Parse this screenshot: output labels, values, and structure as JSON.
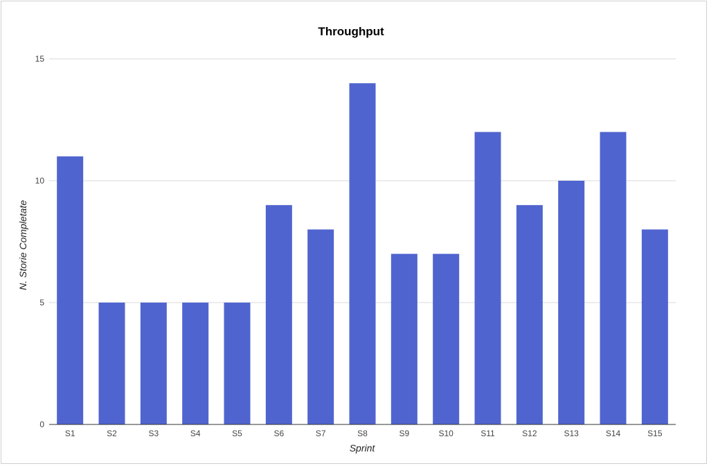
{
  "chart_data": {
    "type": "bar",
    "title": "Throughput",
    "xlabel": "Sprint",
    "ylabel": "N. Storie Completate",
    "categories": [
      "S1",
      "S2",
      "S3",
      "S4",
      "S5",
      "S6",
      "S7",
      "S8",
      "S9",
      "S10",
      "S11",
      "S12",
      "S13",
      "S14",
      "S15"
    ],
    "values": [
      11,
      5,
      5,
      5,
      5,
      9,
      8,
      14,
      7,
      7,
      12,
      9,
      10,
      12,
      8
    ],
    "ylim": [
      0,
      15
    ],
    "yticks": [
      "0",
      "5",
      "10",
      "15"
    ],
    "grid": true,
    "legend": "none",
    "bar_color": "#5064cf",
    "gridline_color": "#d9d9d9",
    "axis_color": "#333333"
  }
}
